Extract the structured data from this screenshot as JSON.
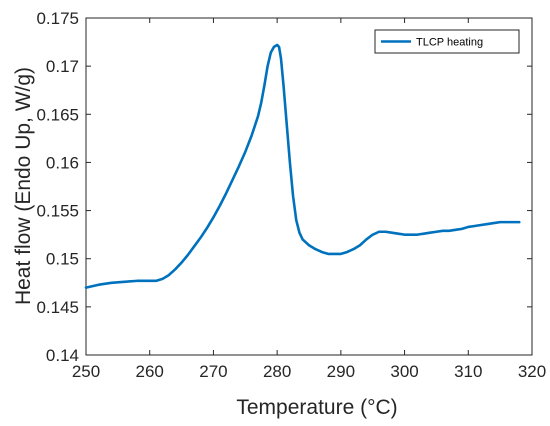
{
  "chart_data": {
    "type": "line",
    "xlabel": "Temperature (°C)",
    "ylabel": "Heat flow (Endo Up, W/g)",
    "xlim": [
      250,
      320
    ],
    "ylim": [
      0.14,
      0.175
    ],
    "xticks": [
      "250",
      "260",
      "270",
      "280",
      "290",
      "300",
      "310",
      "320"
    ],
    "yticks": [
      "0.14",
      "0.145",
      "0.15",
      "0.155",
      "0.16",
      "0.165",
      "0.17",
      "0.175"
    ],
    "grid": false,
    "legend_position": "top-right",
    "series": [
      {
        "name": "TLCP heating",
        "color": "#0072bd",
        "x": [
          250,
          252,
          254,
          256,
          258,
          260,
          261,
          262,
          263,
          264,
          265,
          266,
          267,
          268,
          269,
          270,
          271,
          272,
          273,
          274,
          275,
          276,
          277,
          277.5,
          278,
          278.5,
          279,
          279.5,
          280,
          280.3,
          280.6,
          281,
          281.5,
          282,
          282.5,
          283,
          283.5,
          284,
          285,
          286,
          287,
          288,
          289,
          290,
          291,
          292,
          293,
          294,
          295,
          296,
          297,
          298,
          299,
          300,
          301,
          302,
          303,
          304,
          305,
          306,
          307,
          308,
          309,
          310,
          311,
          312,
          313,
          314,
          315,
          316,
          317,
          318
        ],
        "y": [
          0.147,
          0.1473,
          0.1475,
          0.1476,
          0.1477,
          0.1477,
          0.1477,
          0.1479,
          0.1483,
          0.1489,
          0.1496,
          0.1504,
          0.1513,
          0.1522,
          0.1532,
          0.1543,
          0.1555,
          0.1568,
          0.1582,
          0.1596,
          0.1611,
          0.1628,
          0.1648,
          0.1662,
          0.168,
          0.17,
          0.1714,
          0.172,
          0.1722,
          0.172,
          0.1708,
          0.168,
          0.164,
          0.16,
          0.1565,
          0.154,
          0.1527,
          0.152,
          0.1514,
          0.151,
          0.1507,
          0.1505,
          0.1505,
          0.1505,
          0.1507,
          0.151,
          0.1514,
          0.152,
          0.1525,
          0.1528,
          0.1528,
          0.1527,
          0.1526,
          0.1525,
          0.1525,
          0.1525,
          0.1526,
          0.1527,
          0.1528,
          0.1529,
          0.1529,
          0.153,
          0.1531,
          0.1533,
          0.1534,
          0.1535,
          0.1536,
          0.1537,
          0.1538,
          0.1538,
          0.1538,
          0.1538
        ]
      }
    ]
  }
}
